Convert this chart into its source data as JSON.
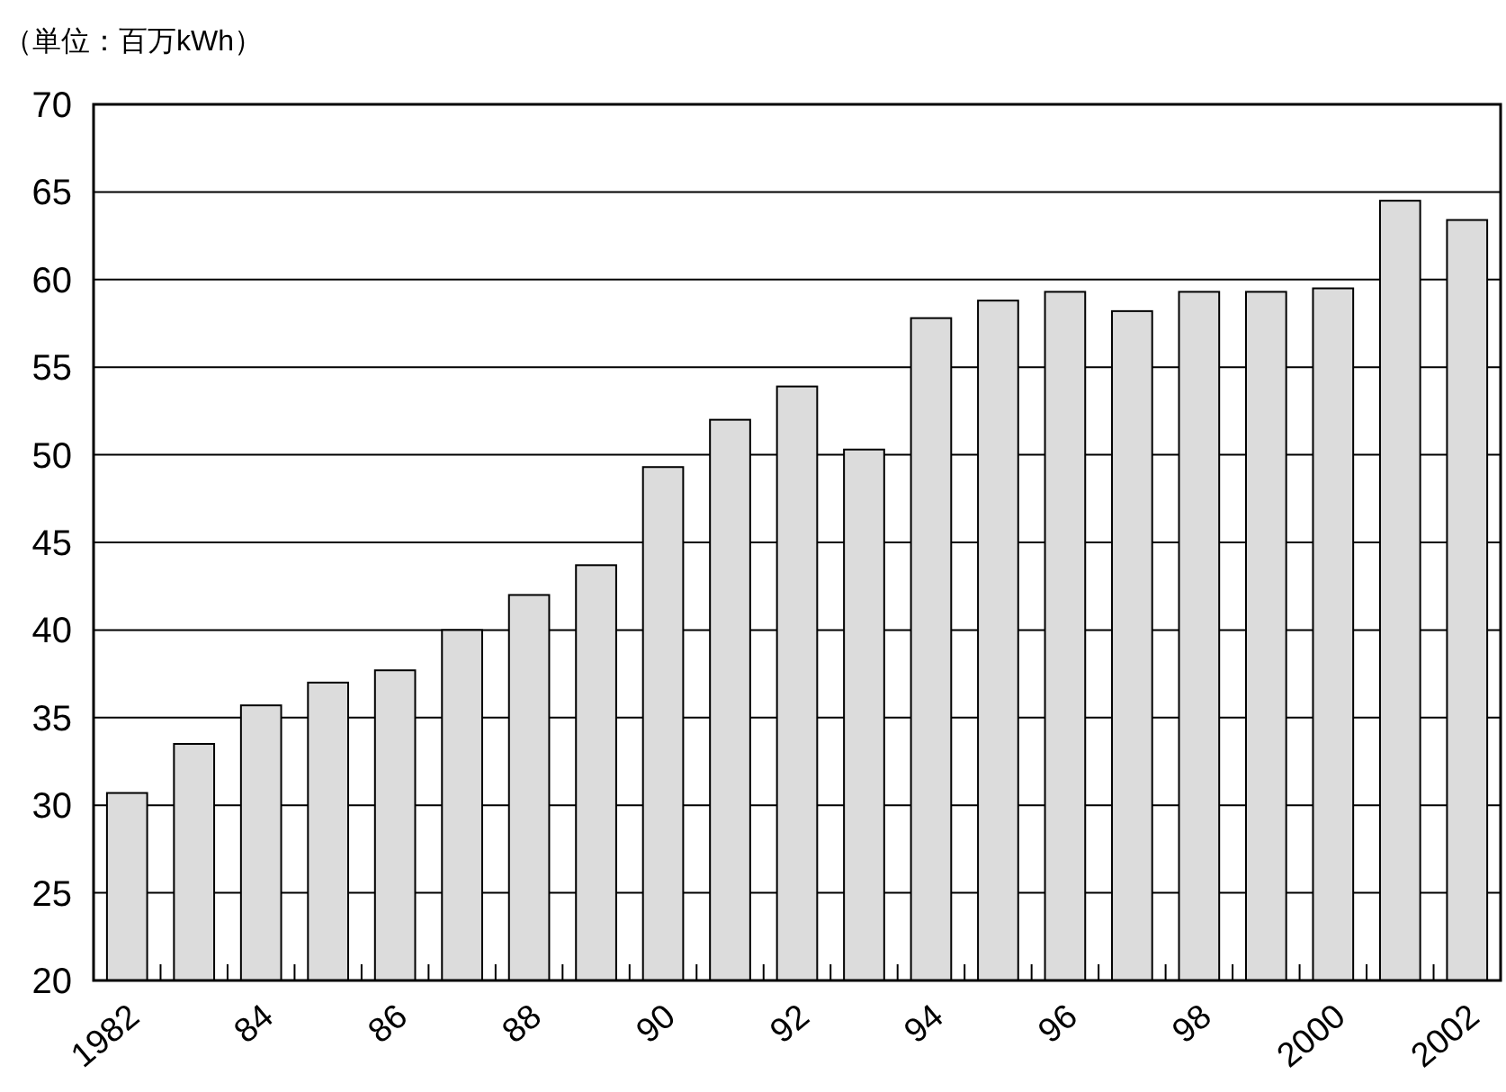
{
  "chart_data": {
    "type": "bar",
    "ylabel": "（単位：百万kWh）",
    "categories": [
      "1982",
      null,
      "84",
      null,
      "86",
      null,
      "88",
      null,
      "90",
      null,
      "92",
      null,
      "94",
      null,
      "96",
      null,
      "98",
      null,
      "2000",
      null,
      "2002"
    ],
    "values": [
      30.7,
      33.5,
      35.7,
      37.0,
      37.7,
      40.0,
      42.0,
      43.7,
      49.3,
      52.0,
      53.9,
      50.3,
      57.8,
      58.8,
      59.3,
      58.2,
      59.3,
      59.3,
      59.5,
      64.5,
      63.4
    ],
    "color": "#dcdcdc",
    "ylim": [
      20,
      70
    ],
    "yticks": [
      20,
      25,
      30,
      35,
      40,
      45,
      50,
      55,
      60,
      65,
      70
    ],
    "grid": "y"
  }
}
